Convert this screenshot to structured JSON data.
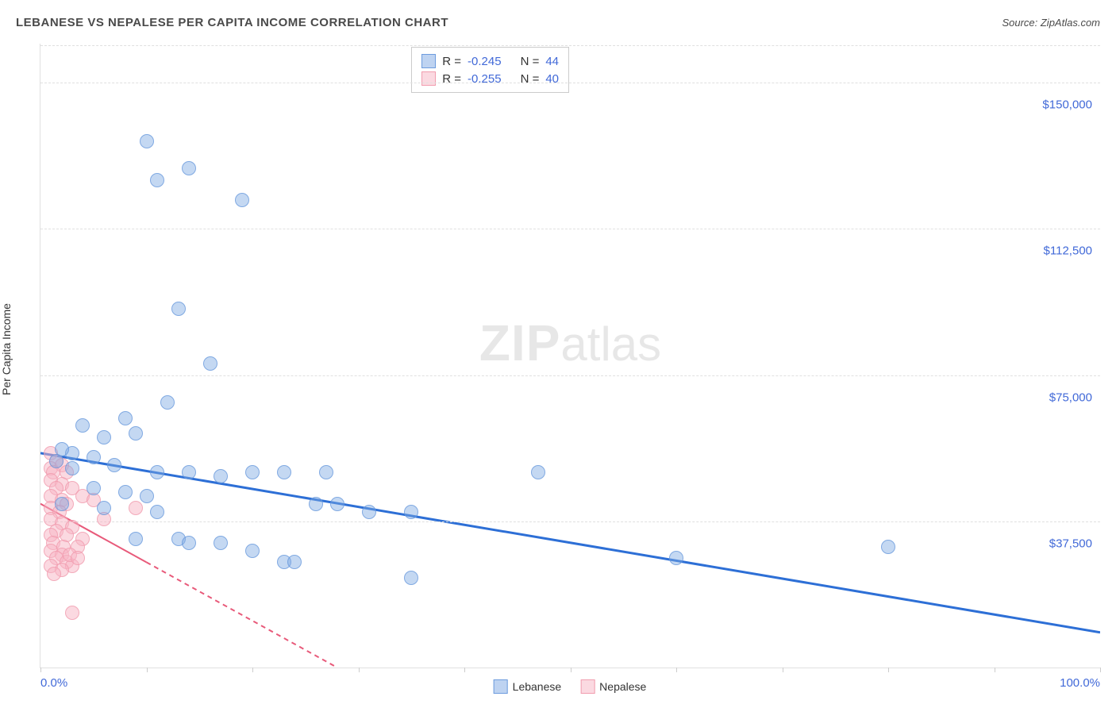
{
  "header": {
    "title": "LEBANESE VS NEPALESE PER CAPITA INCOME CORRELATION CHART",
    "source": "Source: ZipAtlas.com"
  },
  "chart": {
    "type": "scatter",
    "y_axis_label": "Per Capita Income",
    "watermark_bold": "ZIP",
    "watermark_rest": "atlas",
    "xlim": [
      0,
      100
    ],
    "ylim": [
      0,
      160000
    ],
    "y_ticks": [
      37500,
      75000,
      112500,
      150000
    ],
    "y_tick_labels": [
      "$37,500",
      "$75,000",
      "$112,500",
      "$150,000"
    ],
    "x_ticks": [
      0,
      10,
      20,
      30,
      40,
      50,
      60,
      70,
      80,
      90,
      100
    ],
    "x_tick_labels_shown": {
      "0": "0.0%",
      "100": "100.0%"
    },
    "background_color": "#ffffff",
    "grid_color": "#e0e0e0",
    "grid_dash": "4,4",
    "point_radius": 9,
    "series": {
      "lebanese": {
        "label": "Lebanese",
        "color_fill": "rgba(125,168,227,0.45)",
        "color_stroke": "rgba(100,150,220,0.7)",
        "trend": {
          "x1": 0,
          "y1": 55000,
          "x2": 100,
          "y2": 9000,
          "color": "#2d6fd6",
          "width": 3,
          "dash": "none"
        },
        "stats": {
          "R": "-0.245",
          "N": "44"
        },
        "points": [
          [
            10,
            135000
          ],
          [
            14,
            128000
          ],
          [
            11,
            125000
          ],
          [
            19,
            120000
          ],
          [
            13,
            92000
          ],
          [
            16,
            78000
          ],
          [
            12,
            68000
          ],
          [
            8,
            64000
          ],
          [
            4,
            62000
          ],
          [
            6,
            59000
          ],
          [
            9,
            60000
          ],
          [
            3,
            55000
          ],
          [
            2,
            56000
          ],
          [
            1.5,
            53000
          ],
          [
            5,
            54000
          ],
          [
            7,
            52000
          ],
          [
            3,
            51000
          ],
          [
            11,
            50000
          ],
          [
            14,
            50000
          ],
          [
            17,
            49000
          ],
          [
            20,
            50000
          ],
          [
            23,
            50000
          ],
          [
            27,
            50000
          ],
          [
            5,
            46000
          ],
          [
            8,
            45000
          ],
          [
            10,
            44000
          ],
          [
            2,
            42000
          ],
          [
            6,
            41000
          ],
          [
            11,
            40000
          ],
          [
            26,
            42000
          ],
          [
            31,
            40000
          ],
          [
            35,
            40000
          ],
          [
            9,
            33000
          ],
          [
            13,
            33000
          ],
          [
            14,
            32000
          ],
          [
            17,
            32000
          ],
          [
            20,
            30000
          ],
          [
            23,
            27000
          ],
          [
            24,
            27000
          ],
          [
            35,
            23000
          ],
          [
            28,
            42000
          ],
          [
            60,
            28000
          ],
          [
            80,
            31000
          ],
          [
            47,
            50000
          ]
        ]
      },
      "nepalese": {
        "label": "Nepalese",
        "color_fill": "rgba(248,180,195,0.5)",
        "color_stroke": "rgba(240,150,170,0.7)",
        "trend": {
          "x1": 0,
          "y1": 42000,
          "x2": 28,
          "y2": 0,
          "color": "#e85a7a",
          "width": 2,
          "dash": "6,5"
        },
        "trend_solid_until_x": 10,
        "stats": {
          "R": "-0.255",
          "N": "40"
        },
        "points": [
          [
            1,
            55000
          ],
          [
            1.5,
            53000
          ],
          [
            1,
            51000
          ],
          [
            2,
            52000
          ],
          [
            1.2,
            50000
          ],
          [
            2.5,
            50000
          ],
          [
            1,
            48000
          ],
          [
            2,
            47000
          ],
          [
            1.5,
            46000
          ],
          [
            3,
            46000
          ],
          [
            1,
            44000
          ],
          [
            2,
            43000
          ],
          [
            2.5,
            42000
          ],
          [
            4,
            44000
          ],
          [
            5,
            43000
          ],
          [
            1,
            41000
          ],
          [
            1.8,
            40000
          ],
          [
            9,
            41000
          ],
          [
            1,
            38000
          ],
          [
            2,
            37000
          ],
          [
            3,
            36000
          ],
          [
            1.5,
            35000
          ],
          [
            2.5,
            34000
          ],
          [
            1,
            34000
          ],
          [
            4,
            33000
          ],
          [
            1.2,
            32000
          ],
          [
            2.2,
            31000
          ],
          [
            3.5,
            31000
          ],
          [
            1,
            30000
          ],
          [
            2,
            29000
          ],
          [
            1.5,
            28000
          ],
          [
            2.5,
            27000
          ],
          [
            3,
            26000
          ],
          [
            1,
            26000
          ],
          [
            2,
            25000
          ],
          [
            1.3,
            24000
          ],
          [
            2.8,
            29000
          ],
          [
            3.5,
            28000
          ],
          [
            6,
            38000
          ],
          [
            3,
            14000
          ]
        ]
      }
    },
    "legend": {
      "position": "bottom",
      "items": [
        {
          "key": "lebanese",
          "label": "Lebanese"
        },
        {
          "key": "nepalese",
          "label": "Nepalese"
        }
      ]
    },
    "stats_box": {
      "rows": [
        {
          "series": "lebanese",
          "R_label": "R =",
          "N_label": "N ="
        },
        {
          "series": "nepalese",
          "R_label": "R =",
          "N_label": "N ="
        }
      ]
    }
  }
}
